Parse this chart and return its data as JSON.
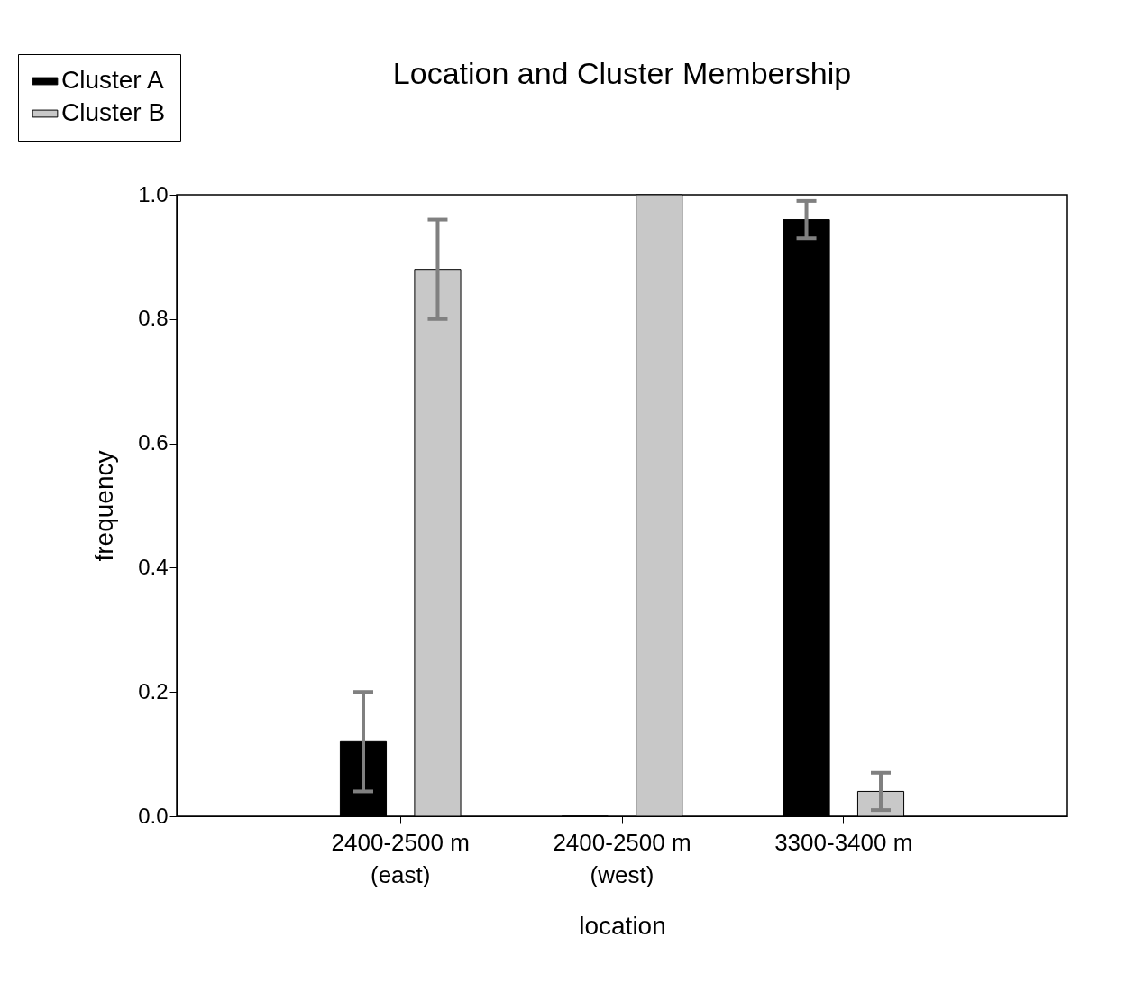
{
  "chart_data": {
    "type": "bar",
    "title": "Location and Cluster Membership",
    "xlabel": "location",
    "ylabel": "frequency",
    "categories": [
      "2400-2500 m\n(east)",
      "2400-2500 m\n(west)",
      "3300-3400 m"
    ],
    "series": [
      {
        "name": "Cluster A",
        "color": "#000000",
        "values": [
          0.12,
          0,
          0.96
        ],
        "errors": [
          0.08,
          null,
          0.03
        ]
      },
      {
        "name": "Cluster B",
        "color": "#c8c8c8",
        "values": [
          0.88,
          1.0,
          0.04
        ],
        "errors": [
          0.08,
          null,
          0.03
        ]
      }
    ],
    "ylim": [
      0,
      1
    ],
    "yticks": [
      {
        "value": 0,
        "label": "0.0"
      },
      {
        "value": 0.2,
        "label": "0.2"
      },
      {
        "value": 0.4,
        "label": "0.4"
      },
      {
        "value": 0.6,
        "label": "0.6"
      },
      {
        "value": 0.8,
        "label": "0.8"
      },
      {
        "value": 1,
        "label": "1.0"
      }
    ],
    "grid": false,
    "legend": "top left"
  }
}
